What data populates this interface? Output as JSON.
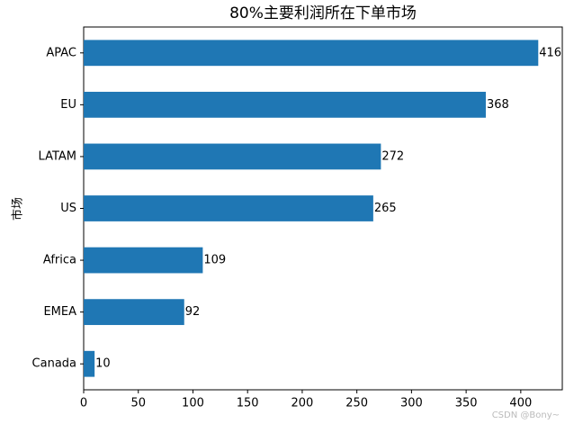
{
  "chart_data": {
    "type": "barh",
    "title": "80%主要利润所在下单市场",
    "ylabel": "市场",
    "categories": [
      "APAC",
      "EU",
      "LATAM",
      "US",
      "Africa",
      "EMEA",
      "Canada"
    ],
    "values": [
      416,
      368,
      272,
      265,
      109,
      92,
      10
    ],
    "color": "#1f77b4",
    "xlim": [
      0,
      438
    ],
    "xticks": [
      0,
      50,
      100,
      150,
      200,
      250,
      300,
      350,
      400
    ],
    "grid": false,
    "watermark": "CSDN @Bony~"
  }
}
